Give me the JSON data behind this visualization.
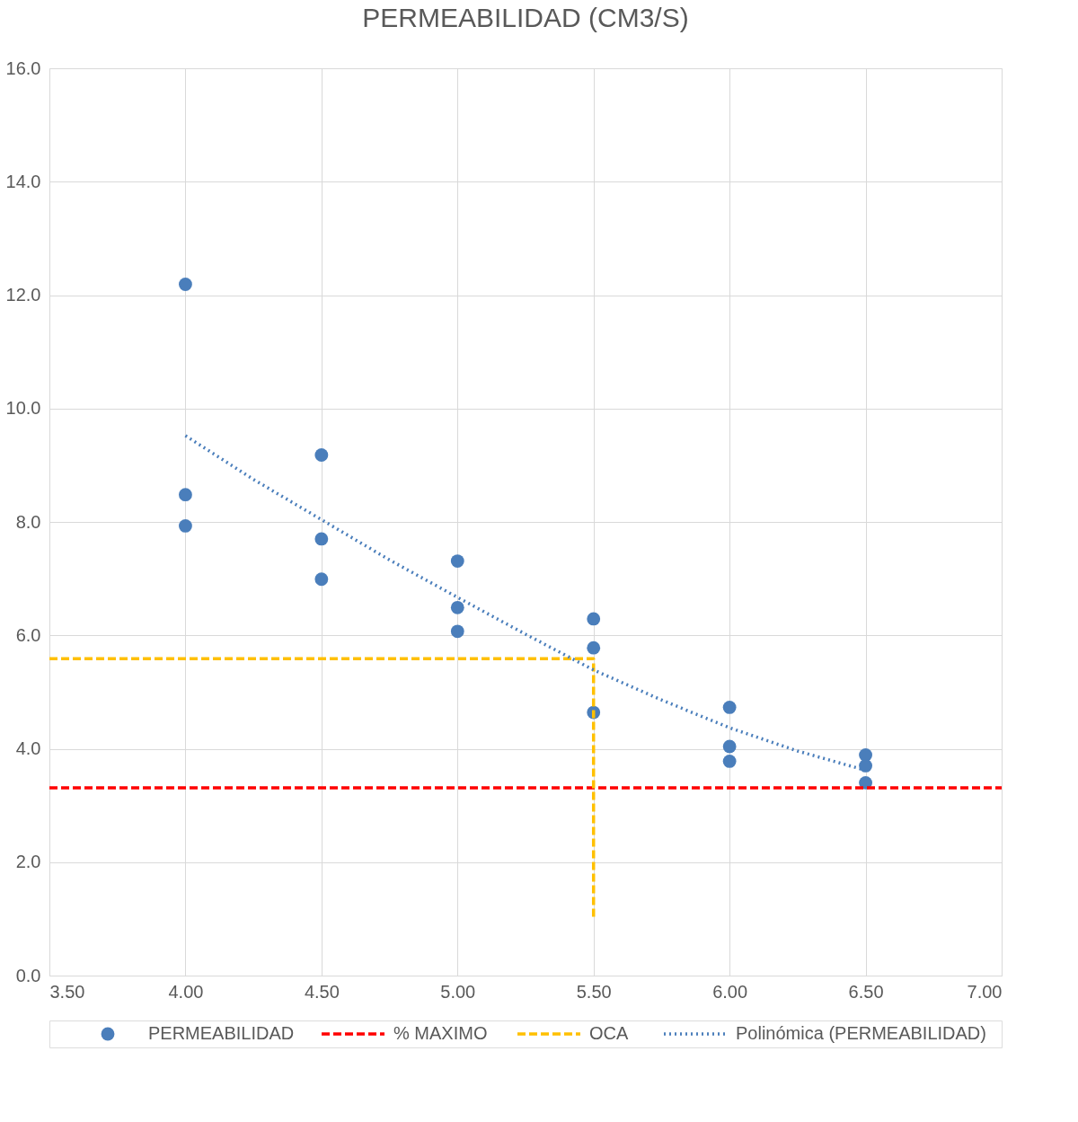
{
  "chart_data": {
    "type": "scatter",
    "title": "PERMEABILIDAD (CM3/S)",
    "xlim": [
      3.5,
      7.0
    ],
    "xticks": [
      {
        "value": 3.5,
        "label": "3.50"
      },
      {
        "value": 4,
        "label": "4.00"
      },
      {
        "value": 4.5,
        "label": "4.50"
      },
      {
        "value": 5,
        "label": "5.00"
      },
      {
        "value": 5.5,
        "label": "5.50"
      },
      {
        "value": 6,
        "label": "6.00"
      },
      {
        "value": 6.5,
        "label": "6.50"
      },
      {
        "value": 7,
        "label": "7.00"
      }
    ],
    "ylim": [
      0,
      16
    ],
    "yticks": [
      {
        "value": 0,
        "label": "0.0"
      },
      {
        "value": 2,
        "label": "2.0"
      },
      {
        "value": 4,
        "label": "4.0"
      },
      {
        "value": 6,
        "label": "6.0"
      },
      {
        "value": 8,
        "label": "8.0"
      },
      {
        "value": 10,
        "label": "10.0"
      },
      {
        "value": 12,
        "label": "12.0"
      },
      {
        "value": 14,
        "label": "14.0"
      },
      {
        "value": 16,
        "label": "16.0"
      }
    ],
    "grid": true,
    "legend": "bottom",
    "series": [
      {
        "name": "PERMEABILIDAD",
        "marker": "circle",
        "color": "#4a7ebb",
        "x": [
          4,
          4,
          4,
          4.5,
          4.5,
          4.5,
          5,
          5,
          5,
          5.5,
          5.5,
          5.5,
          6,
          6,
          6,
          6.5,
          6.5,
          6.5
        ],
        "values": [
          12.19,
          8.48,
          7.93,
          9.18,
          7.7,
          6.99,
          7.31,
          6.49,
          6.07,
          6.29,
          5.78,
          4.64,
          4.73,
          4.04,
          3.78,
          3.89,
          3.7,
          3.4
        ]
      },
      {
        "name": "% MAXIMO",
        "type": "line",
        "line_style": "dashed",
        "color": "#ff0000",
        "x": [
          3.5,
          7.0
        ],
        "values": [
          3.31,
          3.31
        ]
      },
      {
        "name": "OCA",
        "type": "line",
        "line_style": "dashed",
        "color": "#ffc000",
        "x": [
          3.5,
          5.5,
          5.5
        ],
        "values": [
          5.59,
          5.59,
          0.98
        ]
      },
      {
        "name": "Polinómica (PERMEABILIDAD)",
        "type": "line",
        "line_style": "dotted",
        "color": "#4a7ebb",
        "x": [
          4,
          4.25,
          4.5,
          4.75,
          5,
          5.25,
          5.5,
          5.75,
          6,
          6.25,
          6.5
        ],
        "values": [
          9.52,
          8.75,
          8.04,
          7.33,
          6.67,
          6.02,
          5.39,
          4.86,
          4.37,
          3.96,
          3.62
        ]
      }
    ]
  }
}
